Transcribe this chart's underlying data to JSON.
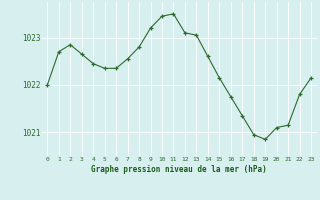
{
  "hours": [
    0,
    1,
    2,
    3,
    4,
    5,
    6,
    7,
    8,
    9,
    10,
    11,
    12,
    13,
    14,
    15,
    16,
    17,
    18,
    19,
    20,
    21,
    22,
    23
  ],
  "values": [
    1022.0,
    1022.7,
    1022.85,
    1022.65,
    1022.45,
    1022.35,
    1022.35,
    1022.55,
    1022.8,
    1023.2,
    1023.45,
    1023.5,
    1023.1,
    1023.05,
    1022.6,
    1022.15,
    1021.75,
    1021.35,
    1020.95,
    1020.85,
    1021.1,
    1021.15,
    1021.8,
    1022.15
  ],
  "line_color": "#2d6a2d",
  "marker": "+",
  "marker_size": 3,
  "bg_color": "#d8eff0",
  "grid_color": "#b0d8d8",
  "xlabel": "Graphe pression niveau de la mer (hPa)",
  "xlabel_color": "#1a5c1a",
  "ylabel_ticks": [
    1021,
    1022,
    1023
  ],
  "ytick_color": "#2d6a2d",
  "xtick_color": "#2d6a2d",
  "ylim": [
    1020.5,
    1023.75
  ],
  "xlim": [
    -0.5,
    23.5
  ],
  "fig_width": 3.2,
  "fig_height": 2.0,
  "dpi": 100
}
